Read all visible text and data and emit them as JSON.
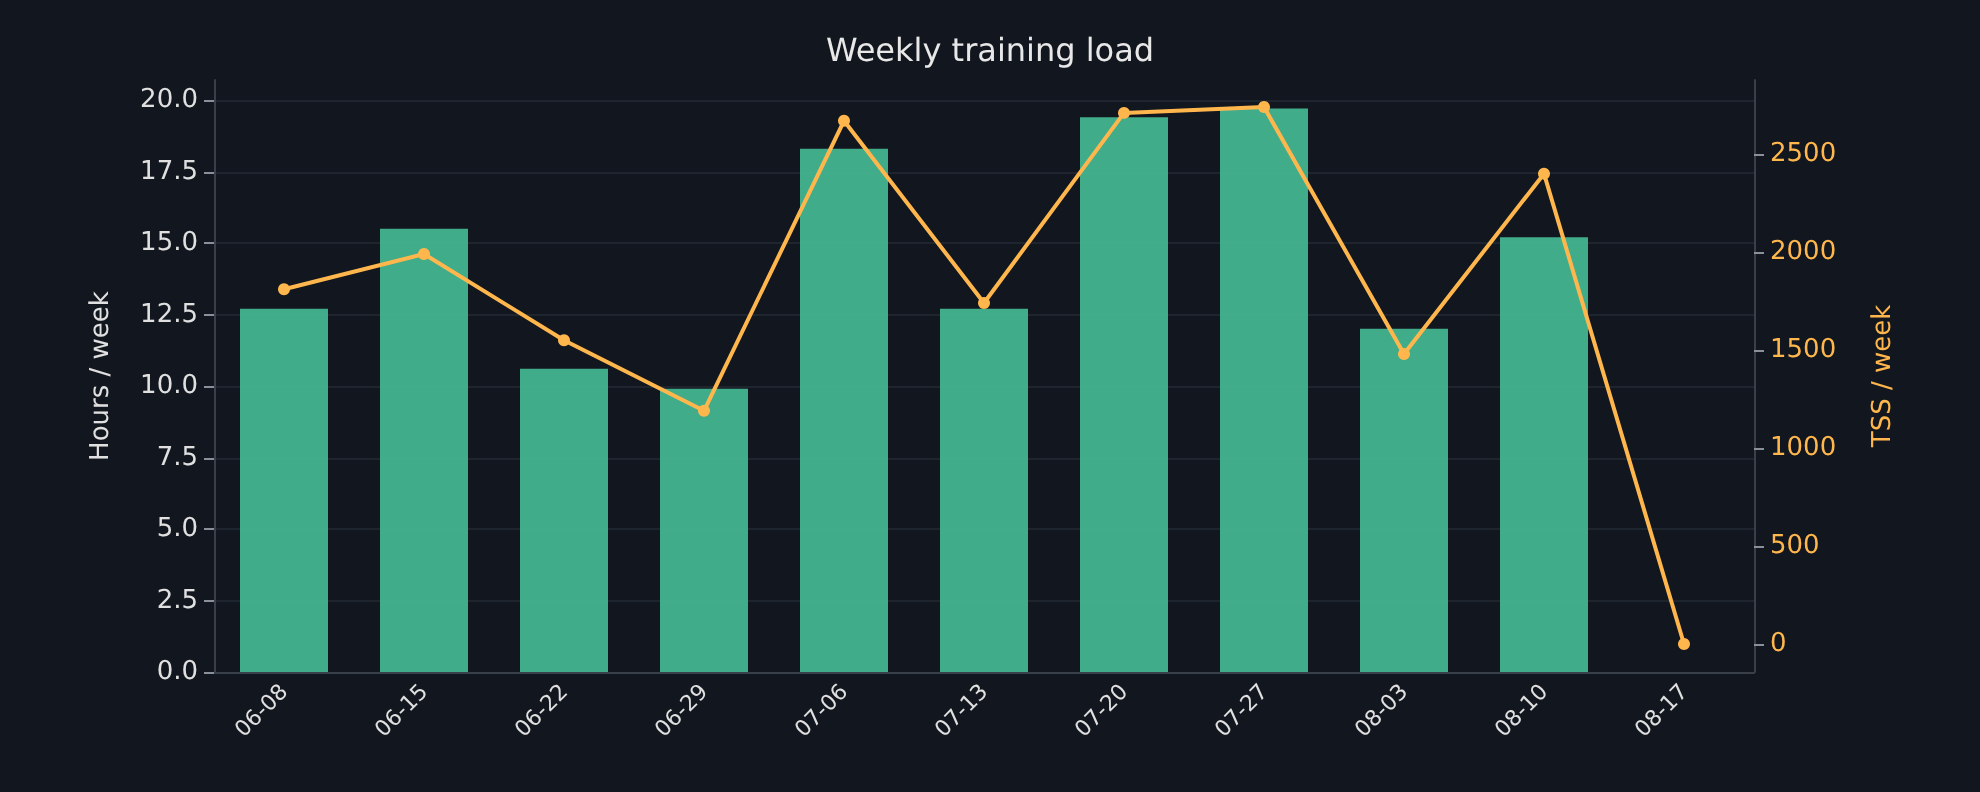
{
  "chart_data": {
    "type": "bar",
    "title": "Weekly training load",
    "ylabel": "Hours / week",
    "y2label": "TSS / week",
    "categories": [
      "06-08",
      "06-15",
      "06-22",
      "06-29",
      "07-06",
      "07-13",
      "07-20",
      "07-27",
      "08-03",
      "08-10",
      "08-17"
    ],
    "series": [
      {
        "color": "#45b48f",
        "values": [
          12.7,
          15.5,
          10.6,
          9.9,
          18.3,
          12.7,
          19.4,
          19.7,
          12.0,
          15.2,
          0
        ]
      },
      {
        "type": "line",
        "axis": "y2",
        "color": "#ffb74d",
        "marker": "circle",
        "line_style": "solid",
        "values": [
          1810,
          1990,
          1550,
          1190,
          2670,
          1740,
          2710,
          2740,
          1480,
          2400,
          0
        ]
      }
    ],
    "ylim": [
      0,
      20.7
    ],
    "yticks": [
      {
        "value": 0,
        "label": "0.0"
      },
      {
        "value": 2.5,
        "label": "2.5"
      },
      {
        "value": 5,
        "label": "5.0"
      },
      {
        "value": 7.5,
        "label": "7.5"
      },
      {
        "value": 10,
        "label": "10.0"
      },
      {
        "value": 12.5,
        "label": "12.5"
      },
      {
        "value": 15,
        "label": "15.0"
      },
      {
        "value": 17.5,
        "label": "17.5"
      },
      {
        "value": 20,
        "label": "20.0"
      }
    ],
    "y2lim": [
      -143,
      2878
    ],
    "y2ticks": [
      0,
      500,
      1000,
      1500,
      2000,
      2500
    ],
    "grid": "y"
  }
}
